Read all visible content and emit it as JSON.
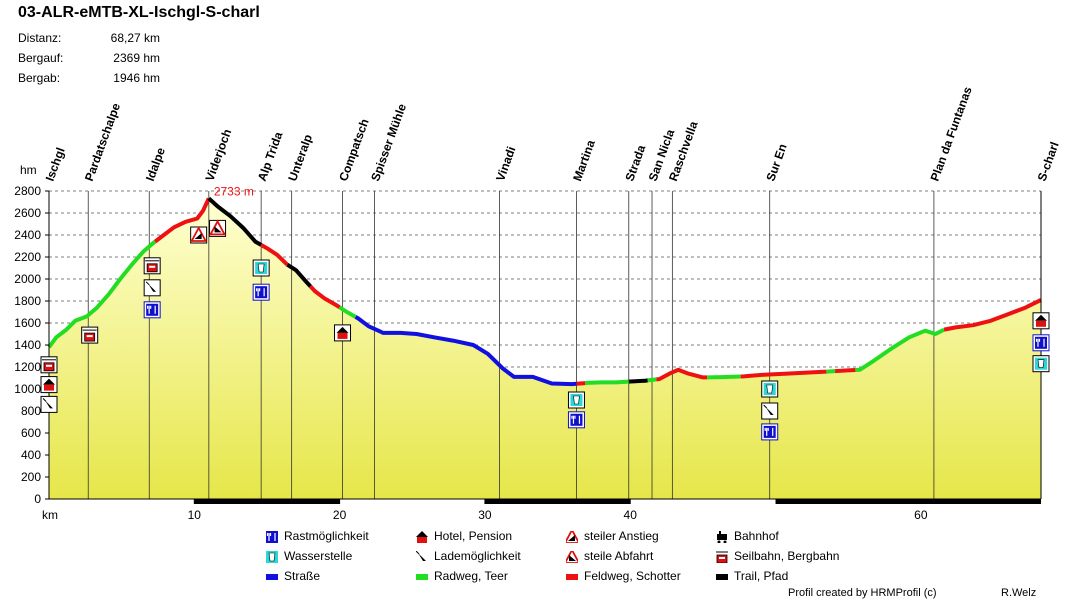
{
  "title": "03-ALR-eMTB-XL-Ischgl-S-charl",
  "stats": [
    {
      "label": "Distanz:",
      "value": "68,27 km"
    },
    {
      "label": "Bergauf:",
      "value": "2369 hm"
    },
    {
      "label": "Bergab:",
      "value": "1946 hm"
    }
  ],
  "colors": {
    "road": "#1010e0",
    "bike": "#22dd22",
    "gravel": "#ee1111",
    "trail": "#000000",
    "fill_top": "#ffffc8",
    "fill_bottom": "#e8e84a",
    "waypoint_line": "#333333"
  },
  "chart_data": {
    "type": "area",
    "title": "",
    "xlabel": "km",
    "ylabel": "hm",
    "xlim": [
      0,
      68.27
    ],
    "ylim": [
      0,
      2800
    ],
    "x_ticks": [
      10,
      20,
      30,
      40,
      60
    ],
    "y_ticks": [
      0,
      200,
      400,
      600,
      800,
      1000,
      1200,
      1400,
      1600,
      1800,
      2000,
      2200,
      2400,
      2600,
      2800
    ],
    "max_label": "2733 m",
    "max_point": {
      "x": 11.0,
      "y": 2733
    },
    "profile": [
      {
        "x": 0,
        "y": 1380
      },
      {
        "x": 0.5,
        "y": 1470
      },
      {
        "x": 1.2,
        "y": 1540
      },
      {
        "x": 1.8,
        "y": 1620
      },
      {
        "x": 2.6,
        "y": 1660
      },
      {
        "x": 3.3,
        "y": 1740
      },
      {
        "x": 4.1,
        "y": 1860
      },
      {
        "x": 4.9,
        "y": 2000
      },
      {
        "x": 5.7,
        "y": 2130
      },
      {
        "x": 6.5,
        "y": 2250
      },
      {
        "x": 7.2,
        "y": 2330
      },
      {
        "x": 7.9,
        "y": 2400
      },
      {
        "x": 8.6,
        "y": 2470
      },
      {
        "x": 9.4,
        "y": 2520
      },
      {
        "x": 10.2,
        "y": 2550
      },
      {
        "x": 10.6,
        "y": 2620
      },
      {
        "x": 11.0,
        "y": 2733
      },
      {
        "x": 11.6,
        "y": 2660
      },
      {
        "x": 12.5,
        "y": 2570
      },
      {
        "x": 13.4,
        "y": 2460
      },
      {
        "x": 14.2,
        "y": 2340
      },
      {
        "x": 15.0,
        "y": 2280
      },
      {
        "x": 15.7,
        "y": 2220
      },
      {
        "x": 16.4,
        "y": 2130
      },
      {
        "x": 17.0,
        "y": 2080
      },
      {
        "x": 17.6,
        "y": 1990
      },
      {
        "x": 18.3,
        "y": 1890
      },
      {
        "x": 19.0,
        "y": 1820
      },
      {
        "x": 19.8,
        "y": 1760
      },
      {
        "x": 20.5,
        "y": 1700
      },
      {
        "x": 21.3,
        "y": 1640
      },
      {
        "x": 22.0,
        "y": 1570
      },
      {
        "x": 23.0,
        "y": 1510
      },
      {
        "x": 24.2,
        "y": 1510
      },
      {
        "x": 25.3,
        "y": 1500
      },
      {
        "x": 26.5,
        "y": 1470
      },
      {
        "x": 27.8,
        "y": 1440
      },
      {
        "x": 29.2,
        "y": 1400
      },
      {
        "x": 30.2,
        "y": 1320
      },
      {
        "x": 31.2,
        "y": 1190
      },
      {
        "x": 32.0,
        "y": 1110
      },
      {
        "x": 33.3,
        "y": 1110
      },
      {
        "x": 34.6,
        "y": 1050
      },
      {
        "x": 36.0,
        "y": 1045
      },
      {
        "x": 37.0,
        "y": 1055
      },
      {
        "x": 38.0,
        "y": 1060
      },
      {
        "x": 39.0,
        "y": 1060
      },
      {
        "x": 40.0,
        "y": 1068
      },
      {
        "x": 41.0,
        "y": 1075
      },
      {
        "x": 42.0,
        "y": 1090
      },
      {
        "x": 42.7,
        "y": 1140
      },
      {
        "x": 43.3,
        "y": 1175
      },
      {
        "x": 44.0,
        "y": 1140
      },
      {
        "x": 45.0,
        "y": 1105
      },
      {
        "x": 46.3,
        "y": 1108
      },
      {
        "x": 47.8,
        "y": 1115
      },
      {
        "x": 49.2,
        "y": 1130
      },
      {
        "x": 50.8,
        "y": 1140
      },
      {
        "x": 52.3,
        "y": 1150
      },
      {
        "x": 53.8,
        "y": 1160
      },
      {
        "x": 54.8,
        "y": 1168
      },
      {
        "x": 55.8,
        "y": 1175
      },
      {
        "x": 56.8,
        "y": 1260
      },
      {
        "x": 58.0,
        "y": 1370
      },
      {
        "x": 59.2,
        "y": 1470
      },
      {
        "x": 60.3,
        "y": 1530
      },
      {
        "x": 61.0,
        "y": 1500
      },
      {
        "x": 61.6,
        "y": 1540
      },
      {
        "x": 62.4,
        "y": 1560
      },
      {
        "x": 63.6,
        "y": 1580
      },
      {
        "x": 64.8,
        "y": 1620
      },
      {
        "x": 66.0,
        "y": 1680
      },
      {
        "x": 67.2,
        "y": 1740
      },
      {
        "x": 68.27,
        "y": 1810
      }
    ],
    "segments": [
      {
        "from": 0,
        "to": 7.3,
        "surface": "bike"
      },
      {
        "from": 7.3,
        "to": 11.0,
        "surface": "gravel"
      },
      {
        "from": 11.0,
        "to": 14.6,
        "surface": "trail"
      },
      {
        "from": 14.6,
        "to": 16.4,
        "surface": "gravel"
      },
      {
        "from": 16.4,
        "to": 18.0,
        "surface": "trail"
      },
      {
        "from": 18.0,
        "to": 20.0,
        "surface": "gravel"
      },
      {
        "from": 20.0,
        "to": 21.1,
        "surface": "bike"
      },
      {
        "from": 21.1,
        "to": 36.3,
        "surface": "road"
      },
      {
        "from": 36.3,
        "to": 36.9,
        "surface": "gravel"
      },
      {
        "from": 36.9,
        "to": 39.9,
        "surface": "bike"
      },
      {
        "from": 39.9,
        "to": 41.2,
        "surface": "trail"
      },
      {
        "from": 41.2,
        "to": 41.8,
        "surface": "bike"
      },
      {
        "from": 41.8,
        "to": 45.3,
        "surface": "gravel"
      },
      {
        "from": 45.3,
        "to": 47.6,
        "surface": "bike"
      },
      {
        "from": 47.6,
        "to": 53.5,
        "surface": "gravel"
      },
      {
        "from": 53.5,
        "to": 54.1,
        "surface": "bike"
      },
      {
        "from": 54.1,
        "to": 55.5,
        "surface": "gravel"
      },
      {
        "from": 55.5,
        "to": 61.6,
        "surface": "bike"
      },
      {
        "from": 61.6,
        "to": 68.27,
        "surface": "gravel"
      }
    ],
    "waypoints": [
      {
        "name": "Ischgl",
        "x": 0.0
      },
      {
        "name": "Pardatschalpe",
        "x": 2.7
      },
      {
        "name": "Idalpe",
        "x": 6.9
      },
      {
        "name": "Viderjoch",
        "x": 11.0
      },
      {
        "name": "Alp Trida",
        "x": 14.6
      },
      {
        "name": "Unteralp",
        "x": 16.7
      },
      {
        "name": "Compatsch",
        "x": 20.2
      },
      {
        "name": "Spisser Mühle",
        "x": 22.4
      },
      {
        "name": "Vinadi",
        "x": 31.0
      },
      {
        "name": "Martina",
        "x": 36.3
      },
      {
        "name": "Strada",
        "x": 39.9
      },
      {
        "name": "San Nicla",
        "x": 41.5
      },
      {
        "name": "Raschvella",
        "x": 42.9
      },
      {
        "name": "Sur En",
        "x": 49.6
      },
      {
        "name": "Plan da Funtanas",
        "x": 60.9
      },
      {
        "name": "S-charl",
        "x": 68.27
      }
    ],
    "markers": [
      {
        "x": 0.0,
        "y": 1220,
        "type": "cablecar"
      },
      {
        "x": 0.0,
        "y": 1040,
        "type": "hotel"
      },
      {
        "x": 0.0,
        "y": 860,
        "type": "charging"
      },
      {
        "x": 2.8,
        "y": 1490,
        "type": "cablecar"
      },
      {
        "x": 7.1,
        "y": 2120,
        "type": "cablecar"
      },
      {
        "x": 7.1,
        "y": 1920,
        "type": "charging"
      },
      {
        "x": 7.1,
        "y": 1720,
        "type": "food"
      },
      {
        "x": 10.3,
        "y": 2400,
        "type": "steep_up"
      },
      {
        "x": 11.6,
        "y": 2460,
        "type": "steep_down"
      },
      {
        "x": 14.6,
        "y": 2100,
        "type": "water"
      },
      {
        "x": 14.6,
        "y": 1880,
        "type": "food"
      },
      {
        "x": 20.2,
        "y": 1510,
        "type": "hotel"
      },
      {
        "x": 36.3,
        "y": 900,
        "type": "water"
      },
      {
        "x": 36.3,
        "y": 720,
        "type": "food"
      },
      {
        "x": 49.6,
        "y": 1000,
        "type": "water"
      },
      {
        "x": 49.6,
        "y": 800,
        "type": "charging"
      },
      {
        "x": 49.6,
        "y": 610,
        "type": "food"
      },
      {
        "x": 68.27,
        "y": 1620,
        "type": "hotel"
      },
      {
        "x": 68.27,
        "y": 1420,
        "type": "food"
      },
      {
        "x": 68.27,
        "y": 1230,
        "type": "water"
      }
    ],
    "black_axis_bands": [
      [
        10,
        20
      ],
      [
        30,
        40
      ],
      [
        50,
        68.27
      ]
    ]
  },
  "legend": [
    {
      "icon": "food",
      "label": "Rastmöglichkeit"
    },
    {
      "icon": "water",
      "label": "Wasserstelle"
    },
    {
      "icon": "road",
      "label": "Straße"
    },
    {
      "icon": "hotel",
      "label": "Hotel, Pension"
    },
    {
      "icon": "charging",
      "label": "Lademöglichkeit"
    },
    {
      "icon": "bike",
      "label": "Radweg, Teer"
    },
    {
      "icon": "steep_up",
      "label": "steiler Anstieg"
    },
    {
      "icon": "steep_down",
      "label": "steile Abfahrt"
    },
    {
      "icon": "gravel",
      "label": "Feldweg, Schotter"
    },
    {
      "icon": "train",
      "label": "Bahnhof"
    },
    {
      "icon": "cablecar",
      "label": "Seilbahn, Bergbahn"
    },
    {
      "icon": "trail",
      "label": "Trail, Pfad"
    }
  ],
  "credits": {
    "left": "Profil created by HRMProfil (c)",
    "right": "R.Welz"
  }
}
